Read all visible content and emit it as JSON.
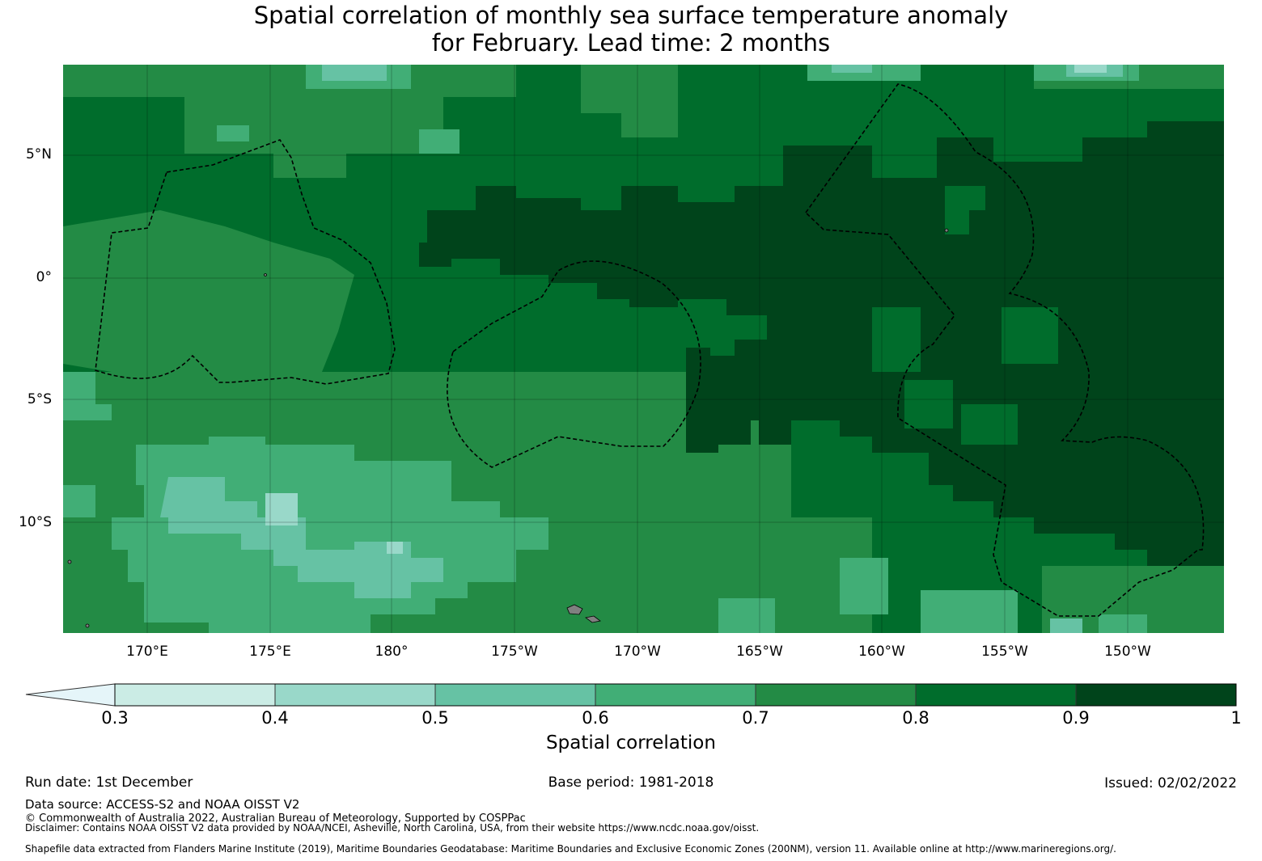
{
  "title_line1": "Spatial correlation of monthly sea surface temperature anomaly",
  "title_line2": "for February. Lead time: 2 months",
  "map": {
    "lat_ticks": [
      "5°N",
      "0°",
      "5°S",
      "10°S"
    ],
    "lon_ticks": [
      "170°E",
      "175°E",
      "180°",
      "175°W",
      "170°W",
      "165°W",
      "160°W",
      "155°W",
      "150°W"
    ],
    "land_color": "#808080",
    "boundary_style": "dashed black EEZ outlines"
  },
  "colorbar": {
    "label": "Spatial correlation",
    "ticks": [
      "0.3",
      "0.4",
      "0.5",
      "0.6",
      "0.7",
      "0.8",
      "0.9",
      "1"
    ],
    "colors": [
      "#cbece5",
      "#99d8c9",
      "#66c2a4",
      "#41ae76",
      "#238b45",
      "#006d2c",
      "#00441b"
    ],
    "extend_color": "#e5f5f9"
  },
  "footer": {
    "run_date": "Run date: 1st December",
    "base_period": "Base period: 1981-2018",
    "issued": "Issued: 02/02/2022",
    "data_source": "Data source: ACCESS-S2 and NOAA OISST V2",
    "copyright": "© Commonwealth of Australia 2022, Australian Bureau of Meteorology, Supported by COSPPac",
    "disclaimer": "Disclaimer: Contains NOAA OISST V2 data provided by NOAA/NCEI, Asheville, North Carolina, USA, from their website https://www.ncdc.noaa.gov/oisst.",
    "shapefile": "Shapefile data extracted from Flanders Marine Institute (2019), Maritime Boundaries Geodatabase: Maritime Boundaries and Exclusive Economic Zones (200NM), version 11. Available online at http://www.marineregions.org/."
  }
}
